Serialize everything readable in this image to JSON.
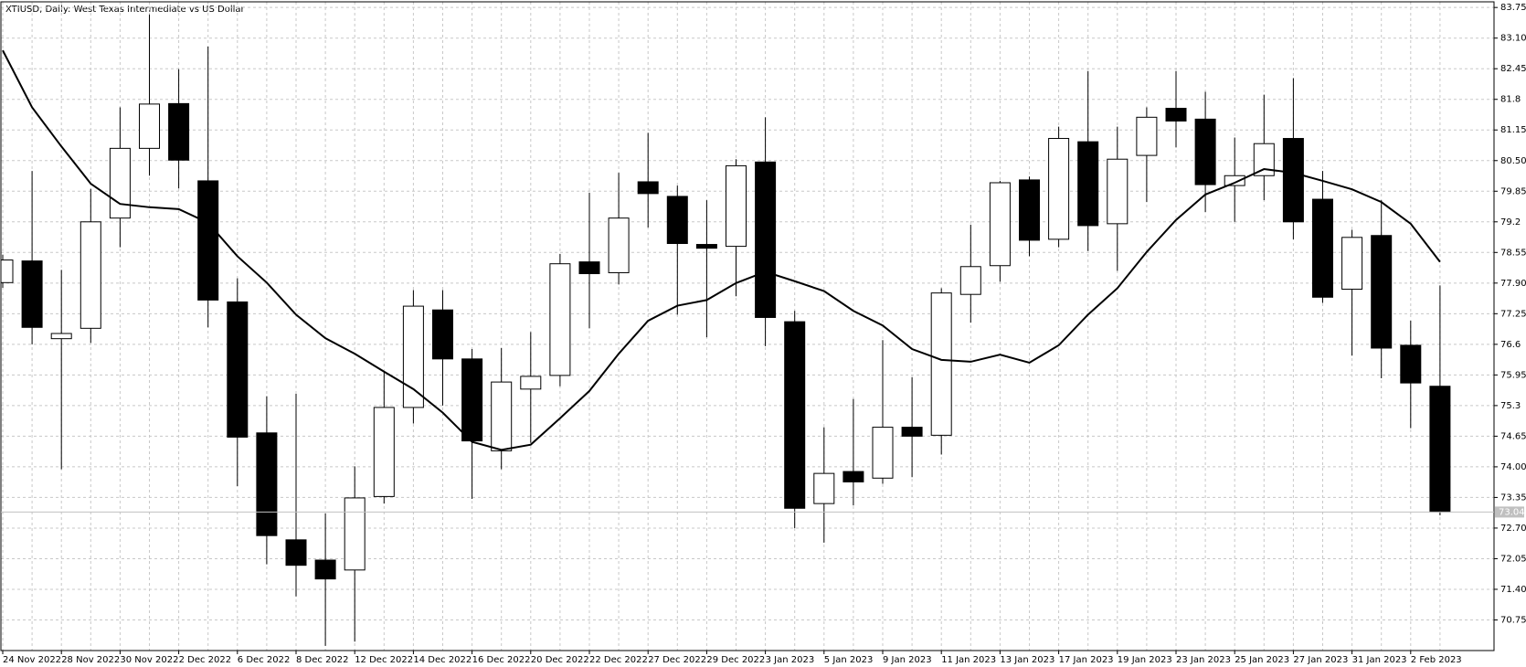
{
  "chart_data": {
    "type": "candlestick",
    "title": "XTIUSD, Daily:  West Texas Intermediate vs US Dollar",
    "x": [
      "24 Nov 2022",
      null,
      "28 Nov 2022",
      null,
      "30 Nov 2022",
      null,
      "2 Dec 2022",
      null,
      "6 Dec 2022",
      null,
      "8 Dec 2022",
      null,
      "12 Dec 2022",
      null,
      "14 Dec 2022",
      null,
      "16 Dec 2022",
      null,
      "20 Dec 2022",
      null,
      "22 Dec 2022",
      null,
      "27 Dec 2022",
      null,
      "29 Dec 2022",
      null,
      "3 Jan 2023",
      null,
      "5 Jan 2023",
      null,
      "9 Jan 2023",
      null,
      "11 Jan 2023",
      null,
      "13 Jan 2023",
      null,
      "17 Jan 2023",
      null,
      "19 Jan 2023",
      null,
      "23 Jan 2023",
      null,
      "25 Jan 2023",
      null,
      "27 Jan 2023",
      null,
      "31 Jan 2023",
      null,
      "2 Feb 2023",
      null
    ],
    "open": [
      77.91,
      78.37,
      76.72,
      76.94,
      79.28,
      80.76,
      81.71,
      80.07,
      77.5,
      74.72,
      72.45,
      72.02,
      71.81,
      73.37,
      75.26,
      77.33,
      76.29,
      74.34,
      75.65,
      75.94,
      78.35,
      78.12,
      80.05,
      79.74,
      78.72,
      78.68,
      80.47,
      77.08,
      73.22,
      73.9,
      73.76,
      74.84,
      74.67,
      77.66,
      78.27,
      80.09,
      78.83,
      80.9,
      79.16,
      80.61,
      81.61,
      81.38,
      79.97,
      80.18,
      80.97,
      79.68,
      77.77,
      78.91,
      76.58,
      75.71
    ],
    "high": [
      78.5,
      80.28,
      78.18,
      79.9,
      81.63,
      83.6,
      82.44,
      82.92,
      78.0,
      75.5,
      75.55,
      73.01,
      74.01,
      76.02,
      77.75,
      77.75,
      76.5,
      76.52,
      76.86,
      78.52,
      79.82,
      80.24,
      81.09,
      79.97,
      79.66,
      80.53,
      81.42,
      77.31,
      74.84,
      75.44,
      76.69,
      75.9,
      77.79,
      79.14,
      80.07,
      80.16,
      81.22,
      82.4,
      81.22,
      81.63,
      82.4,
      81.96,
      80.99,
      81.9,
      82.25,
      80.28,
      79.03,
      79.66,
      77.1,
      77.85
    ],
    "low": [
      77.8,
      76.6,
      73.95,
      76.63,
      78.66,
      80.18,
      79.91,
      76.96,
      73.59,
      71.93,
      71.25,
      70.2,
      70.29,
      73.22,
      74.92,
      75.3,
      73.32,
      73.95,
      74.51,
      75.71,
      76.94,
      77.87,
      79.08,
      77.23,
      76.75,
      77.62,
      76.56,
      72.7,
      72.39,
      73.18,
      73.64,
      73.78,
      74.26,
      77.06,
      77.93,
      78.47,
      78.66,
      78.58,
      78.16,
      79.62,
      80.78,
      79.41,
      79.2,
      79.66,
      78.83,
      77.48,
      76.36,
      75.88,
      74.82,
      72.97
    ],
    "close": [
      78.39,
      76.96,
      76.83,
      79.2,
      80.76,
      81.7,
      80.51,
      77.54,
      74.63,
      72.54,
      71.91,
      71.62,
      73.34,
      75.26,
      77.41,
      76.29,
      74.55,
      75.8,
      75.92,
      78.31,
      78.1,
      79.28,
      79.8,
      78.74,
      78.64,
      80.39,
      77.17,
      73.12,
      73.86,
      73.68,
      74.84,
      74.65,
      77.69,
      78.25,
      80.03,
      78.81,
      80.97,
      79.12,
      80.53,
      81.42,
      81.34,
      79.99,
      80.18,
      80.86,
      79.2,
      77.6,
      78.87,
      76.52,
      75.78,
      73.04
    ],
    "up_color": "#ffffff",
    "down_color": "#000000",
    "ma": {
      "color": "#000000",
      "values": [
        82.84,
        81.63,
        80.8,
        80.01,
        79.58,
        79.51,
        79.47,
        79.18,
        78.47,
        77.91,
        77.23,
        76.73,
        76.4,
        76.02,
        75.65,
        75.15,
        74.53,
        74.36,
        74.47,
        75.03,
        75.61,
        76.4,
        77.1,
        77.42,
        77.54,
        77.9,
        78.14,
        77.94,
        77.73,
        77.31,
        77.0,
        76.5,
        76.27,
        76.23,
        76.38,
        76.21,
        76.58,
        77.23,
        77.79,
        78.56,
        79.24,
        79.78,
        80.03,
        80.32,
        80.24,
        80.07,
        79.89,
        79.62,
        79.16,
        78.35
      ]
    },
    "last_price": 73.04,
    "ylim": [
      70.1,
      83.87
    ],
    "yticks": [
      83.75,
      {
        "value": 83.1,
        "label": "83.10"
      },
      82.45,
      81.8,
      81.15,
      {
        "value": 80.5,
        "label": "80.50"
      },
      79.85,
      79.2,
      78.55,
      {
        "value": 77.9,
        "label": "77.90"
      },
      77.25,
      76.6,
      75.95,
      75.3,
      74.65,
      {
        "value": 74,
        "label": "74.00"
      },
      73.35,
      {
        "value": 72.7,
        "label": "72.70"
      },
      72.05,
      {
        "value": 71.4,
        "label": "71.40"
      },
      70.75
    ],
    "grid": true
  }
}
